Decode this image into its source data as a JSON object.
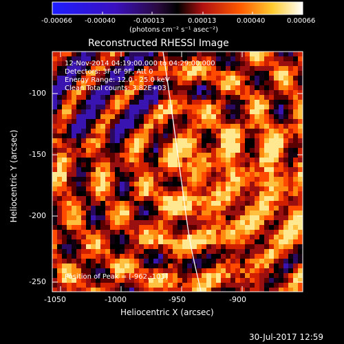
{
  "colorbar": {
    "tick_labels": [
      "-0.00066",
      "-0.00040",
      "-0.00013",
      "0.00013",
      "0.00040",
      "0.00066"
    ],
    "units_label": "(photons cm⁻² s⁻¹ asec⁻²)"
  },
  "title": "Reconstructed RHESSI Image",
  "info": {
    "time_range": "12-Nov-2014 04:19:00.000 to 04:29:00.000",
    "detectors": "Detectors: 3F 6F 9F, Att 0",
    "energy": "Energy Range: 12.0 - 25.0 keV",
    "clean": "Clean    Total counts: 3.82E+03",
    "peak": "Position of Peak = [-962,-101]"
  },
  "axes": {
    "xlabel": "Heliocentric X (arcsec)",
    "ylabel": "Heliocentric Y (arcsec)",
    "x_ticks": [
      "-1050",
      "-1000",
      "-950",
      "-900"
    ],
    "y_ticks": [
      "-100",
      "-150",
      "-200",
      "-250"
    ]
  },
  "timestamp": "30-Jul-2017 12:59",
  "colors": {
    "background": "#000000",
    "limb_line": "#ffffff"
  }
}
